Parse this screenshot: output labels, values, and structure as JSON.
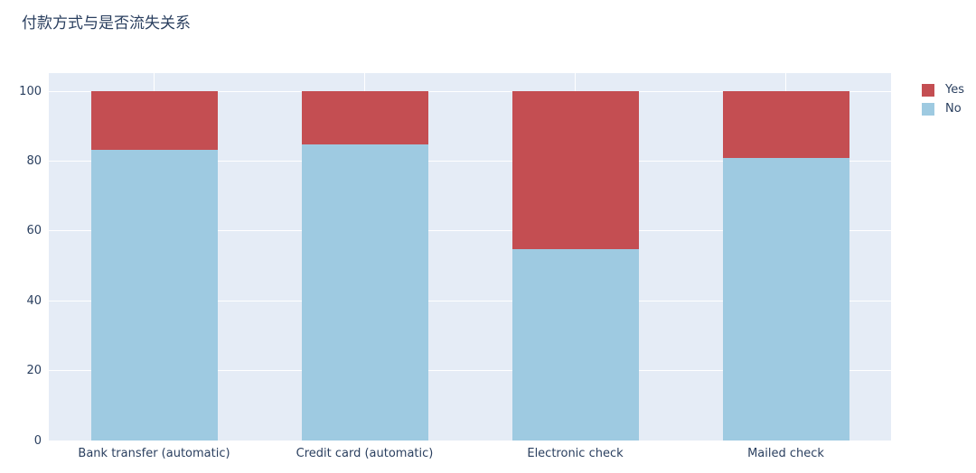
{
  "title": "付款方式与是否流失关系",
  "colors": {
    "yes": "#c44e52",
    "no": "#9ecae1",
    "plot_background": "#e5ecf6",
    "gridline": "#ffffff",
    "text": "#2a3f5f",
    "paper_background": "#ffffff"
  },
  "legend": {
    "items": [
      {
        "label": "Yes",
        "color": "#c44e52"
      },
      {
        "label": "No",
        "color": "#9ecae1"
      }
    ]
  },
  "chart_data": {
    "type": "bar",
    "stacked": true,
    "title": "付款方式与是否流失关系",
    "categories": [
      "Bank transfer (automatic)",
      "Credit card (automatic)",
      "Electronic check",
      "Mailed check"
    ],
    "series": [
      {
        "name": "No",
        "color": "#9ecae1",
        "values": [
          83.3,
          84.8,
          54.7,
          80.9
        ]
      },
      {
        "name": "Yes",
        "color": "#c44e52",
        "values": [
          16.7,
          15.2,
          45.3,
          19.1
        ]
      }
    ],
    "xlabel": "",
    "ylabel": "",
    "ylim": [
      0,
      105
    ],
    "yticks": [
      0,
      20,
      40,
      60,
      80,
      100
    ],
    "grid": true,
    "legend_position": "top-right"
  }
}
